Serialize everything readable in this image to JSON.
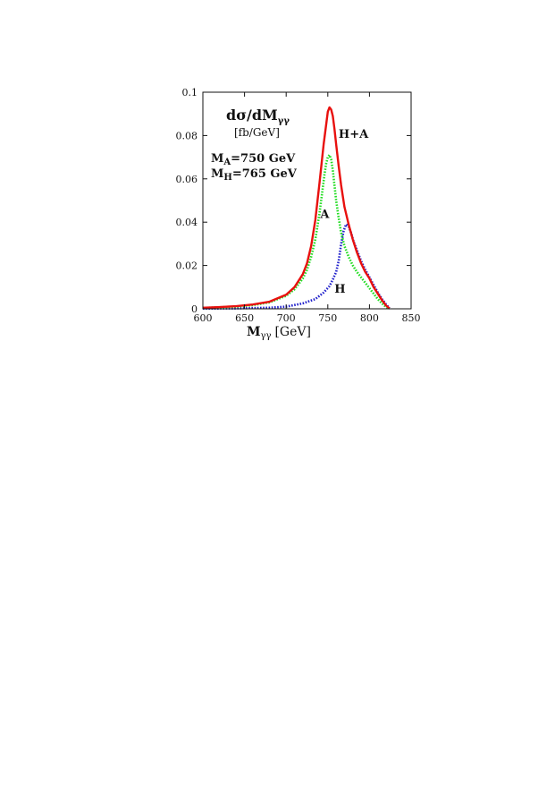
{
  "chart_data": {
    "type": "line",
    "title": "dσ/dM",
    "title_sub": "γγ",
    "unit_label": "[fb/GeV]",
    "xlabel": "M",
    "xlabel_sub": "γγ",
    "xlabel_unit": "[GeV]",
    "xlim": [
      600,
      850
    ],
    "ylim": [
      0,
      0.1
    ],
    "xticks": [
      "600",
      "650",
      "700",
      "750",
      "800",
      "850"
    ],
    "yticks": [
      "0",
      "0.02",
      "0.04",
      "0.06",
      "0.08",
      "0.1"
    ],
    "grid": false,
    "legend": "none",
    "annotations": [
      {
        "id": "mass-a",
        "main": "M",
        "sub": "A",
        "text": "=750 GeV"
      },
      {
        "id": "mass-h",
        "main": "M",
        "sub": "H",
        "text": "=765 GeV"
      }
    ],
    "series": [
      {
        "name": "H+A",
        "color": "#e8100e",
        "style": "solid",
        "label_at": [
          763,
          0.079
        ],
        "x": [
          600,
          620,
          640,
          660,
          680,
          700,
          710,
          720,
          725,
          730,
          735,
          740,
          745,
          748,
          750,
          752,
          754,
          756,
          758,
          760,
          763,
          766,
          770,
          775,
          780,
          785,
          790,
          795,
          800,
          805,
          810,
          815,
          820,
          824
        ],
        "y": [
          0.0005,
          0.0008,
          0.0012,
          0.002,
          0.0033,
          0.0065,
          0.01,
          0.016,
          0.021,
          0.029,
          0.041,
          0.058,
          0.076,
          0.085,
          0.091,
          0.093,
          0.092,
          0.089,
          0.083,
          0.076,
          0.066,
          0.057,
          0.047,
          0.039,
          0.032,
          0.026,
          0.021,
          0.017,
          0.014,
          0.01,
          0.007,
          0.004,
          0.0015,
          0.0002
        ]
      },
      {
        "name": "A",
        "color": "#22dd22",
        "style": "dotted",
        "label_at": [
          741,
          0.042
        ],
        "x": [
          600,
          620,
          640,
          660,
          680,
          700,
          710,
          720,
          725,
          730,
          735,
          740,
          743,
          746,
          748,
          750,
          752,
          754,
          756,
          758,
          760,
          763,
          766,
          770,
          775,
          780,
          785,
          790,
          795,
          800,
          805,
          810,
          815,
          820,
          824
        ],
        "y": [
          0.0004,
          0.0007,
          0.001,
          0.0017,
          0.003,
          0.006,
          0.009,
          0.014,
          0.018,
          0.024,
          0.032,
          0.044,
          0.053,
          0.062,
          0.067,
          0.07,
          0.071,
          0.069,
          0.064,
          0.057,
          0.05,
          0.042,
          0.035,
          0.029,
          0.024,
          0.02,
          0.017,
          0.0145,
          0.012,
          0.0095,
          0.007,
          0.0045,
          0.0025,
          0.0008,
          0.0001
        ]
      },
      {
        "name": "H",
        "color": "#2222cc",
        "style": "dotted",
        "label_at": [
          758,
          0.0075
        ],
        "x": [
          600,
          640,
          680,
          700,
          720,
          735,
          745,
          752,
          756,
          760,
          763,
          766,
          769,
          772,
          775,
          778,
          781,
          785,
          790,
          795,
          800,
          805,
          810,
          815,
          820,
          824
        ],
        "y": [
          0.0001,
          0.0002,
          0.0005,
          0.001,
          0.0025,
          0.0045,
          0.0075,
          0.0105,
          0.0135,
          0.017,
          0.022,
          0.03,
          0.036,
          0.039,
          0.038,
          0.035,
          0.031,
          0.027,
          0.022,
          0.018,
          0.0145,
          0.011,
          0.0075,
          0.0045,
          0.002,
          0.0003
        ]
      }
    ]
  }
}
